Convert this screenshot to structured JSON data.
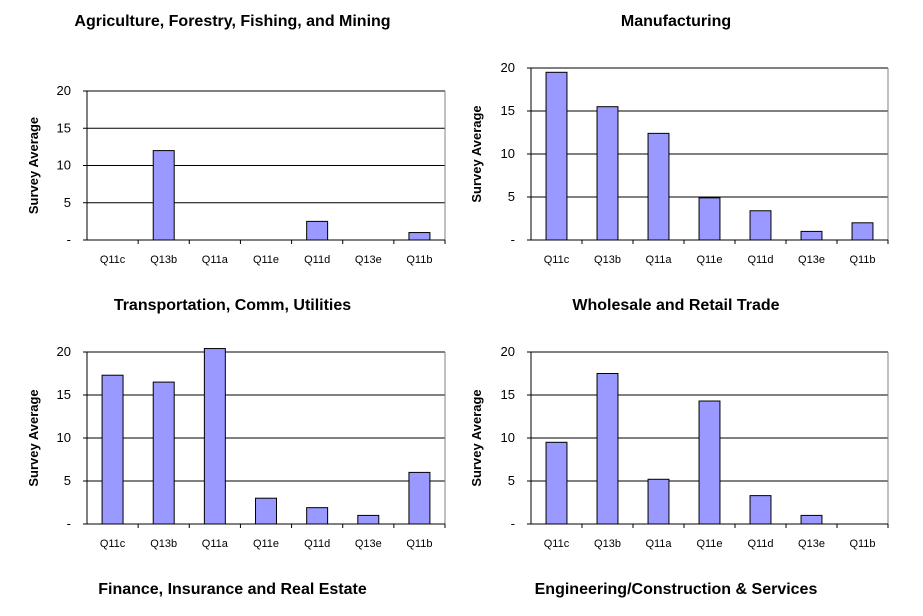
{
  "colors": {
    "bar_fill": "#9999FF",
    "bar_stroke": "#000000",
    "grid": "#000000"
  },
  "tick_labels": [
    "-",
    "5",
    "10",
    "15",
    "20"
  ],
  "bottom_titles": [
    "Finance, Insurance and Real Estate",
    "Engineering/Construction & Services"
  ],
  "chart_data": [
    {
      "type": "bar",
      "title": "Agriculture, Forestry, Fishing, and Mining",
      "xlabel": "",
      "ylabel": "Survey Average",
      "ylim": [
        0,
        20
      ],
      "categories": [
        "Q11c",
        "Q13b",
        "Q11a",
        "Q11e",
        "Q11d",
        "Q13e",
        "Q11b"
      ],
      "values": [
        0,
        12,
        0,
        0,
        2.5,
        0,
        1
      ],
      "grid": true
    },
    {
      "type": "bar",
      "title": "Manufacturing",
      "xlabel": "",
      "ylabel": "Survey Average",
      "ylim": [
        0,
        20
      ],
      "categories": [
        "Q11c",
        "Q13b",
        "Q11a",
        "Q11e",
        "Q11d",
        "Q13e",
        "Q11b"
      ],
      "values": [
        19.5,
        15.5,
        12.4,
        4.9,
        3.4,
        1,
        2
      ],
      "grid": true
    },
    {
      "type": "bar",
      "title": "Transportation, Comm, Utilities",
      "xlabel": "",
      "ylabel": "Survey Average",
      "ylim": [
        0,
        20
      ],
      "categories": [
        "Q11c",
        "Q13b",
        "Q11a",
        "Q11e",
        "Q11d",
        "Q13e",
        "Q11b"
      ],
      "values": [
        17.3,
        16.5,
        20.4,
        3,
        1.9,
        1,
        6
      ],
      "grid": true
    },
    {
      "type": "bar",
      "title": "Wholesale and Retail Trade",
      "xlabel": "",
      "ylabel": "Survey Average",
      "ylim": [
        0,
        20
      ],
      "categories": [
        "Q11c",
        "Q13b",
        "Q11a",
        "Q11e",
        "Q11d",
        "Q13e",
        "Q11b"
      ],
      "values": [
        9.5,
        17.5,
        5.2,
        14.3,
        3.3,
        1,
        0
      ],
      "grid": true
    }
  ]
}
